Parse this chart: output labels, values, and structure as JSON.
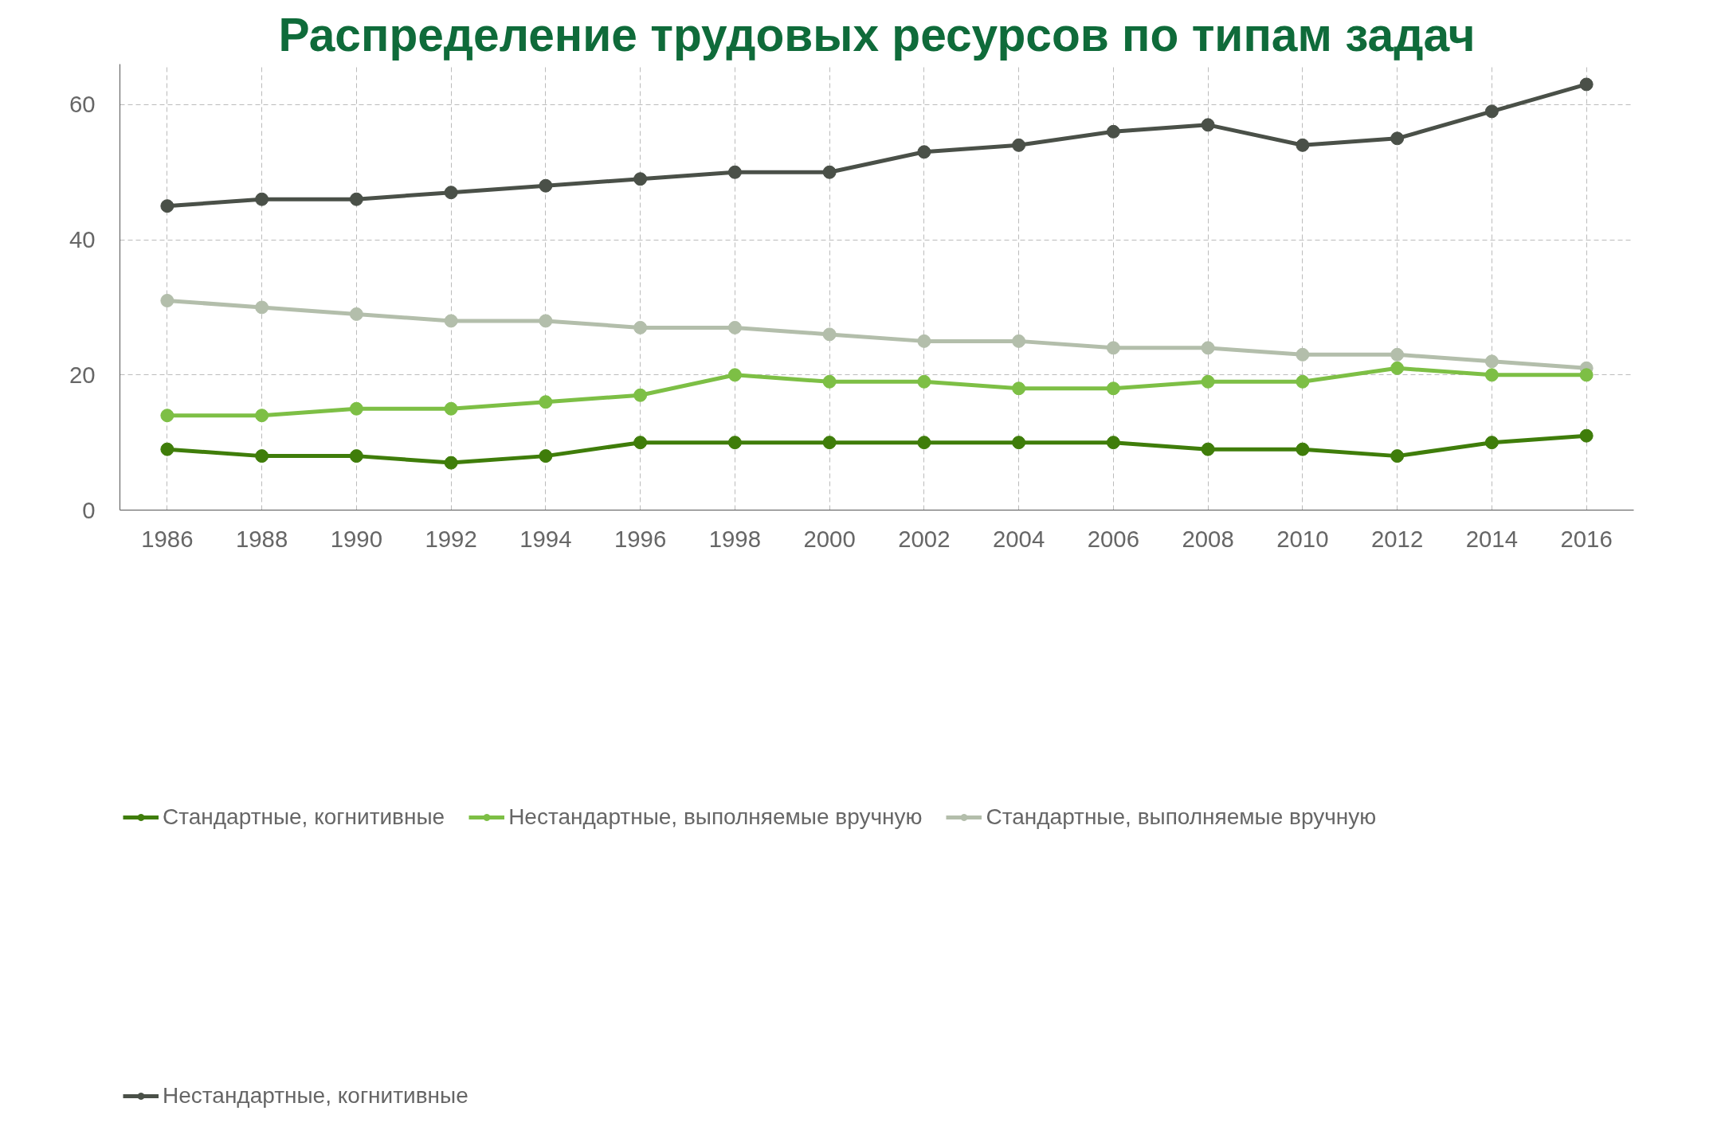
{
  "chart_data": {
    "type": "line",
    "title": "Распределение трудовых ресурсов по типам задач",
    "x": [
      1986,
      1988,
      1990,
      1992,
      1994,
      1996,
      1998,
      2000,
      2002,
      2004,
      2006,
      2008,
      2010,
      2012,
      2014,
      2016
    ],
    "series": [
      {
        "name": "Стандартные, когнитивные",
        "color": "#3f7d0a",
        "values": [
          9,
          8,
          8,
          7,
          8,
          10,
          10,
          10,
          10,
          10,
          10,
          9,
          9,
          8,
          10,
          11
        ]
      },
      {
        "name": "Нестандартные, выполняемые вручную",
        "color": "#7dbf45",
        "values": [
          14,
          14,
          15,
          15,
          16,
          17,
          20,
          19,
          19,
          18,
          18,
          19,
          19,
          21,
          20,
          20
        ]
      },
      {
        "name": "Стандартные, выполняемые вручную",
        "color": "#b3beab",
        "values": [
          31,
          30,
          29,
          28,
          28,
          27,
          27,
          26,
          25,
          25,
          24,
          24,
          23,
          23,
          22,
          21
        ]
      },
      {
        "name": "Нестандартные, когнитивные",
        "color": "#4a5048",
        "values": [
          45,
          46,
          46,
          47,
          48,
          49,
          50,
          50,
          53,
          54,
          56,
          57,
          54,
          55,
          59,
          63
        ]
      }
    ],
    "xlim": [
      1985,
      2017
    ],
    "ylim": [
      0,
      66
    ],
    "xticks": [
      1986,
      1988,
      1990,
      1992,
      1994,
      1996,
      1998,
      2000,
      2002,
      2004,
      2006,
      2008,
      2010,
      2012,
      2014,
      2016
    ],
    "yticks": [
      0,
      20,
      40,
      60
    ],
    "grid": true,
    "legend": "bottom",
    "marker": "circle",
    "line_style": "solid"
  }
}
